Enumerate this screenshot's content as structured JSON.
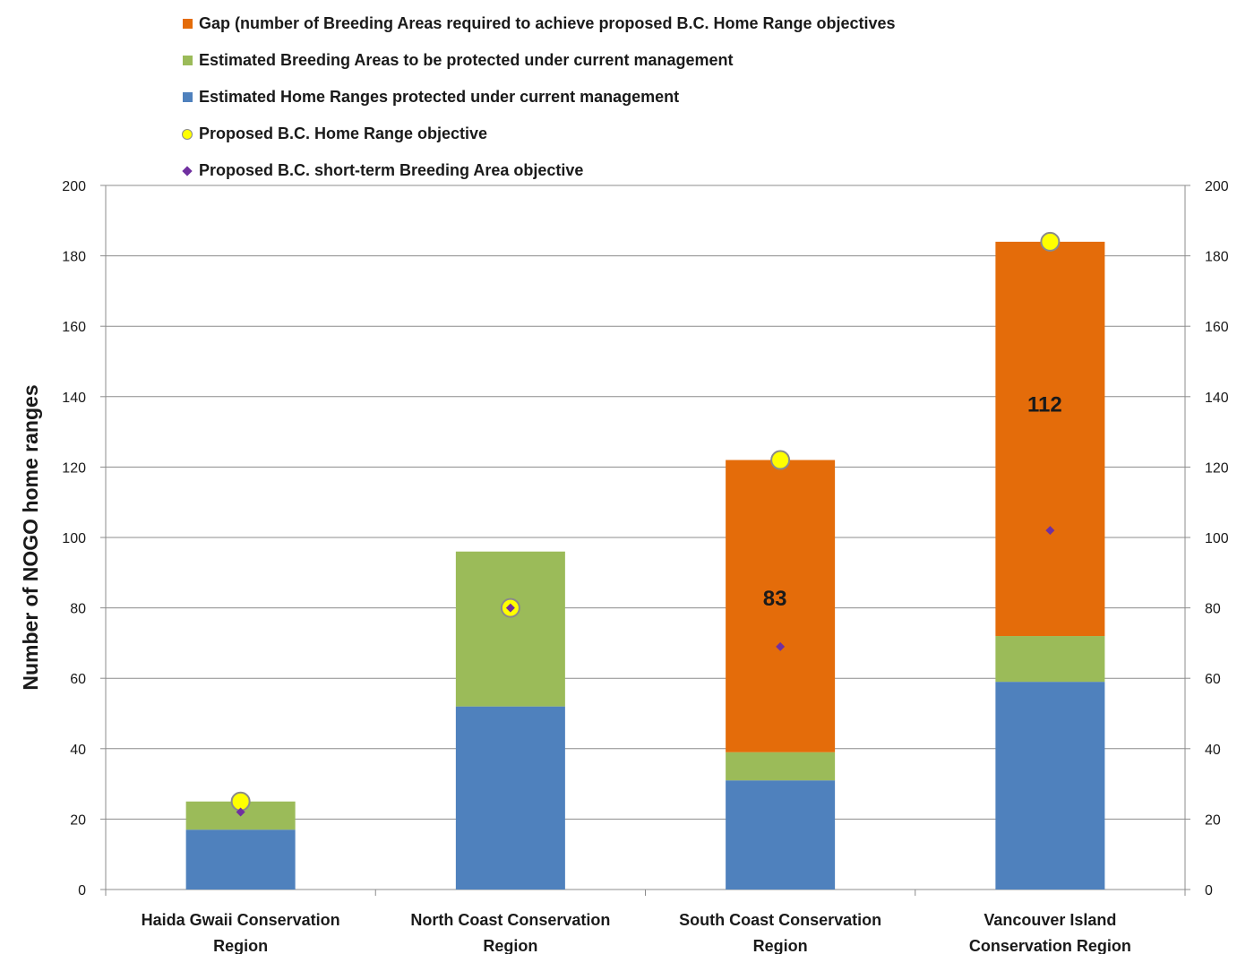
{
  "chart_data": {
    "type": "bar",
    "stacked": true,
    "title": "",
    "ylabel": "Number of NOGO home ranges",
    "xlabel": "",
    "ylim": [
      0,
      200
    ],
    "yticks": [
      0,
      20,
      40,
      60,
      80,
      100,
      120,
      140,
      160,
      180,
      200
    ],
    "secondary_y_axis": true,
    "grid": true,
    "legend_position": "top",
    "categories": [
      [
        "Haida Gwaii Conservation",
        "Region"
      ],
      [
        "North Coast Conservation",
        "Region"
      ],
      [
        "South Coast Conservation",
        "Region"
      ],
      [
        "Vancouver Island",
        "Conservation Region"
      ]
    ],
    "series": [
      {
        "name": "Estimated Home Ranges protected under current management",
        "type": "bar",
        "color": "#4f81bd",
        "values": [
          17,
          52,
          31,
          59
        ]
      },
      {
        "name": "Estimated Breeding Areas to be protected under current management",
        "type": "bar",
        "color": "#9bbb59",
        "values": [
          8,
          44,
          8,
          13
        ]
      },
      {
        "name": "Gap (number of Breeding Areas required to achieve proposed B.C. Home Range objectives",
        "type": "bar",
        "color": "#e46c0a",
        "values": [
          0,
          0,
          83,
          112
        ]
      },
      {
        "name": "Proposed B.C. Home Range objective",
        "type": "marker-circle",
        "color": "#ffff00",
        "values": [
          25,
          80,
          122,
          184
        ]
      },
      {
        "name": "Proposed B.C. short-term Breeding Area objective",
        "type": "marker-diamond",
        "color": "#7030a0",
        "values": [
          22,
          80,
          69,
          102
        ]
      }
    ],
    "data_labels": [
      {
        "category_index": 2,
        "text": "83",
        "y": 83
      },
      {
        "category_index": 3,
        "text": "112",
        "y": 138
      }
    ]
  },
  "legend": {
    "items": [
      {
        "label": "Gap (number of Breeding Areas required to achieve proposed B.C. Home Range objectives",
        "marker": "square",
        "color": "#e46c0a"
      },
      {
        "label": "Estimated Breeding Areas to be protected under current management",
        "marker": "square",
        "color": "#9bbb59"
      },
      {
        "label": "Estimated Home Ranges protected under current management",
        "marker": "square",
        "color": "#4f81bd"
      },
      {
        "label": "Proposed B.C. Home Range objective",
        "marker": "circle",
        "color": "#ffff00"
      },
      {
        "label": "Proposed B.C. short-term Breeding Area objective",
        "marker": "diamond",
        "color": "#7030a0"
      }
    ]
  }
}
